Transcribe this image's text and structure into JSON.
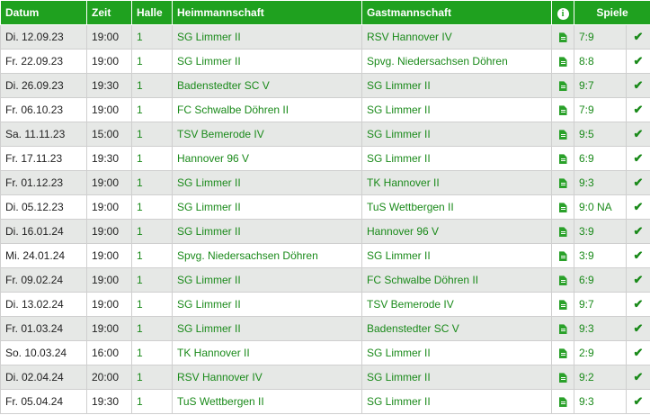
{
  "headers": {
    "datum": "Datum",
    "zeit": "Zeit",
    "halle": "Halle",
    "heim": "Heimmannschaft",
    "gast": "Gastmannschaft",
    "info": "i",
    "spiele": "Spiele"
  },
  "icons": {
    "document": "document-icon",
    "check": "check-icon",
    "info": "info-icon"
  },
  "colors": {
    "header_bg": "#1fa11f",
    "link": "#1a8a1a",
    "row_alt": "#e6e8e6"
  },
  "rows": [
    {
      "datum": "Di. 12.09.23",
      "zeit": "19:00",
      "halle": "1",
      "heim": "SG Limmer II",
      "gast": "RSV Hannover IV",
      "spiele": "7:9"
    },
    {
      "datum": "Fr. 22.09.23",
      "zeit": "19:00",
      "halle": "1",
      "heim": "SG Limmer II",
      "gast": "Spvg. Niedersachsen Döhren",
      "spiele": "8:8"
    },
    {
      "datum": "Di. 26.09.23",
      "zeit": "19:30",
      "halle": "1",
      "heim": "Badenstedter SC V",
      "gast": "SG Limmer II",
      "spiele": "9:7"
    },
    {
      "datum": "Fr. 06.10.23",
      "zeit": "19:00",
      "halle": "1",
      "heim": "FC Schwalbe Döhren II",
      "gast": "SG Limmer II",
      "spiele": "7:9"
    },
    {
      "datum": "Sa. 11.11.23",
      "zeit": "15:00",
      "halle": "1",
      "heim": "TSV Bemerode IV",
      "gast": "SG Limmer II",
      "spiele": "9:5"
    },
    {
      "datum": "Fr. 17.11.23",
      "zeit": "19:30",
      "halle": "1",
      "heim": "Hannover 96 V",
      "gast": "SG Limmer II",
      "spiele": "6:9"
    },
    {
      "datum": "Fr. 01.12.23",
      "zeit": "19:00",
      "halle": "1",
      "heim": "SG Limmer II",
      "gast": "TK Hannover II",
      "spiele": "9:3"
    },
    {
      "datum": "Di. 05.12.23",
      "zeit": "19:00",
      "halle": "1",
      "heim": "SG Limmer II",
      "gast": "TuS Wettbergen II",
      "spiele": "9:0 NA"
    },
    {
      "datum": "Di. 16.01.24",
      "zeit": "19:00",
      "halle": "1",
      "heim": "SG Limmer II",
      "gast": "Hannover 96 V",
      "spiele": "3:9"
    },
    {
      "datum": "Mi. 24.01.24",
      "zeit": "19:00",
      "halle": "1",
      "heim": "Spvg. Niedersachsen Döhren",
      "gast": "SG Limmer II",
      "spiele": "3:9"
    },
    {
      "datum": "Fr. 09.02.24",
      "zeit": "19:00",
      "halle": "1",
      "heim": "SG Limmer II",
      "gast": "FC Schwalbe Döhren II",
      "spiele": "6:9"
    },
    {
      "datum": "Di. 13.02.24",
      "zeit": "19:00",
      "halle": "1",
      "heim": "SG Limmer II",
      "gast": "TSV Bemerode IV",
      "spiele": "9:7"
    },
    {
      "datum": "Fr. 01.03.24",
      "zeit": "19:00",
      "halle": "1",
      "heim": "SG Limmer II",
      "gast": "Badenstedter SC V",
      "spiele": "9:3"
    },
    {
      "datum": "So. 10.03.24",
      "zeit": "16:00",
      "halle": "1",
      "heim": "TK Hannover II",
      "gast": "SG Limmer II",
      "spiele": "2:9"
    },
    {
      "datum": "Di. 02.04.24",
      "zeit": "20:00",
      "halle": "1",
      "heim": "RSV Hannover IV",
      "gast": "SG Limmer II",
      "spiele": "9:2"
    },
    {
      "datum": "Fr. 05.04.24",
      "zeit": "19:30",
      "halle": "1",
      "heim": "TuS Wettbergen II",
      "gast": "SG Limmer II",
      "spiele": "9:3"
    }
  ]
}
